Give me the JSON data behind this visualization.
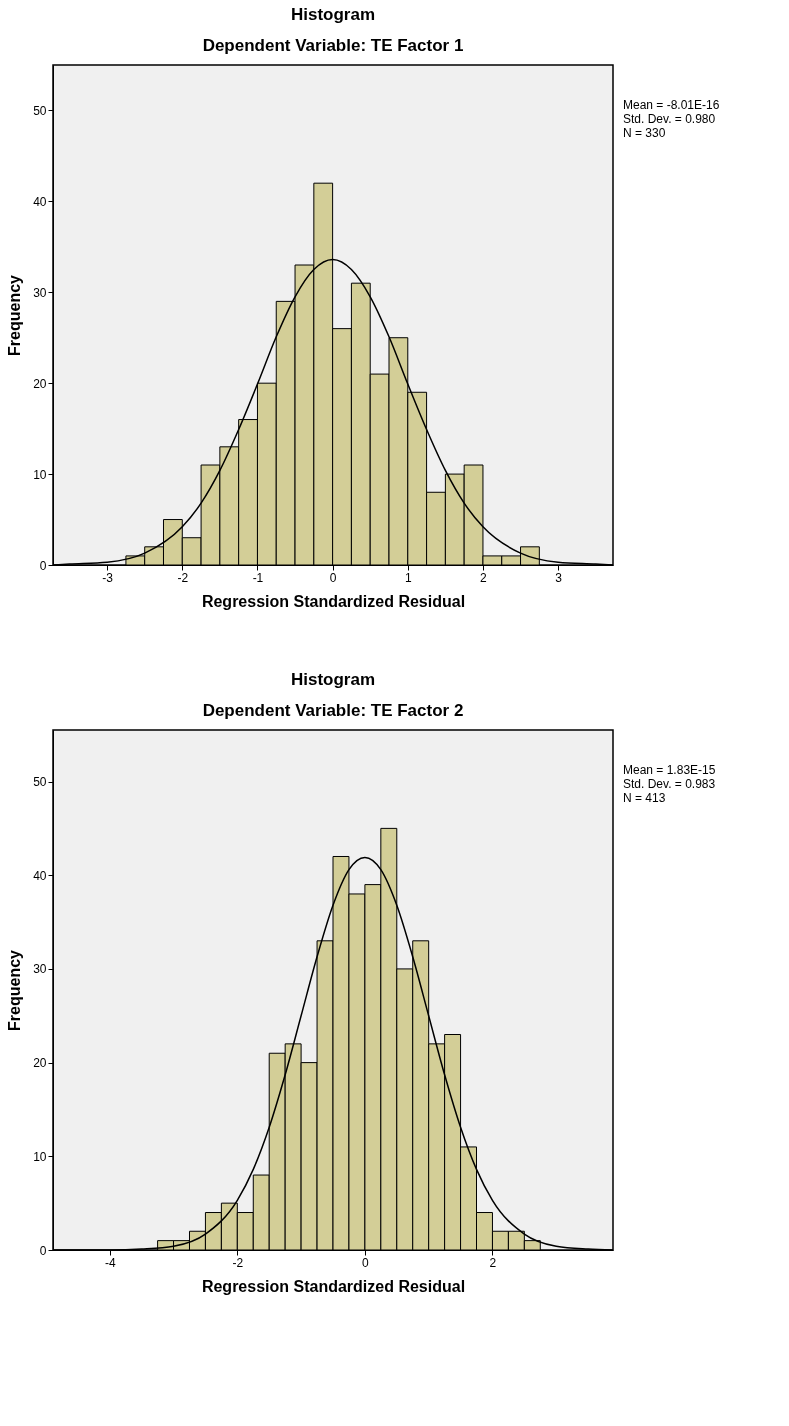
{
  "chart_data": [
    {
      "type": "histogram",
      "title": "Histogram",
      "subtitle": "Dependent Variable: TE Factor 1",
      "xlabel": "Regression Standardized Residual",
      "ylabel": "Frequency",
      "bins": [
        -2.75,
        -2.5,
        -2.25,
        -2.0,
        -1.75,
        -1.5,
        -1.25,
        -1.0,
        -0.75,
        -0.5,
        -0.25,
        0.0,
        0.25,
        0.5,
        0.75,
        1.0,
        1.25,
        1.5,
        1.75,
        2.0,
        2.25,
        2.5,
        2.75
      ],
      "values": [
        1,
        2,
        5,
        3,
        11,
        13,
        16,
        20,
        29,
        33,
        42,
        26,
        31,
        21,
        25,
        19,
        8,
        10,
        11,
        1,
        1,
        2
      ],
      "color": "#d3ce97",
      "series": [
        {
          "type": "line",
          "color": "#000000",
          "x": [
            -3.72,
            -3.5,
            -3.0,
            -2.5,
            -2.0,
            -1.75,
            -1.5,
            -1.25,
            -1.0,
            -0.75,
            -0.5,
            -0.25,
            0.0,
            0.25,
            0.5,
            0.75,
            1.0,
            1.25,
            1.5,
            1.75,
            2.0,
            2.5,
            3.0,
            3.5,
            3.73
          ],
          "values": [
            0.0,
            0.1,
            0.3,
            1.3,
            4.2,
            6.8,
            10.4,
            14.9,
            19.9,
            25.1,
            29.5,
            32.5,
            33.6,
            32.5,
            29.5,
            25.1,
            19.9,
            14.9,
            10.4,
            6.8,
            4.2,
            1.3,
            0.3,
            0.1,
            0.0
          ]
        }
      ],
      "xlim": [
        -3.72,
        3.73
      ],
      "xticks": [
        -3,
        -2,
        -1,
        0,
        1,
        2,
        3
      ],
      "ylim": [
        0,
        55
      ],
      "yticks": [
        0,
        10,
        20,
        30,
        40,
        50
      ],
      "grid": false,
      "annotations": [
        "Mean = -8.01E-16",
        "Std. Dev. = 0.980",
        "N = 330"
      ]
    },
    {
      "type": "histogram",
      "title": "Histogram",
      "subtitle": "Dependent Variable: TE Factor 2",
      "xlabel": "Regression Standardized Residual",
      "ylabel": "Frequency",
      "bins": [
        -3.25,
        -3.0,
        -2.75,
        -2.5,
        -2.25,
        -2.0,
        -1.75,
        -1.5,
        -1.25,
        -1.0,
        -0.75,
        -0.5,
        -0.25,
        0.0,
        0.25,
        0.5,
        0.75,
        1.0,
        1.25,
        1.5,
        1.75,
        2.0,
        2.25,
        2.5,
        2.75
      ],
      "values": [
        1,
        1,
        2,
        4,
        5,
        4,
        8,
        21,
        22,
        20,
        33,
        42,
        38,
        39,
        45,
        30,
        33,
        22,
        23,
        11,
        4,
        2,
        2,
        1
      ],
      "color": "#d3ce97",
      "series": [
        {
          "type": "line",
          "color": "#000000",
          "x": [
            -4.89,
            -4.0,
            -3.5,
            -3.0,
            -2.5,
            -2.0,
            -1.75,
            -1.5,
            -1.25,
            -1.0,
            -0.75,
            -0.5,
            -0.25,
            0.0,
            0.25,
            0.5,
            0.75,
            1.0,
            1.25,
            1.5,
            1.75,
            2.0,
            2.5,
            3.0,
            3.5,
            3.89
          ],
          "values": [
            0.0,
            0.0,
            0.1,
            0.4,
            1.7,
            5.3,
            8.6,
            13.1,
            18.7,
            25.0,
            31.3,
            36.8,
            40.6,
            41.9,
            40.6,
            36.8,
            31.3,
            25.0,
            18.7,
            13.1,
            8.6,
            5.3,
            1.7,
            0.4,
            0.1,
            0.0
          ]
        }
      ],
      "xlim": [
        -4.89,
        3.89
      ],
      "xticks": [
        -4,
        -2,
        0,
        2
      ],
      "ylim": [
        0,
        55.5
      ],
      "yticks": [
        0,
        10,
        20,
        30,
        40,
        50
      ],
      "grid": false,
      "annotations": [
        "Mean = 1.83E-15",
        "Std. Dev. = 0.983",
        "N = 413"
      ]
    }
  ]
}
